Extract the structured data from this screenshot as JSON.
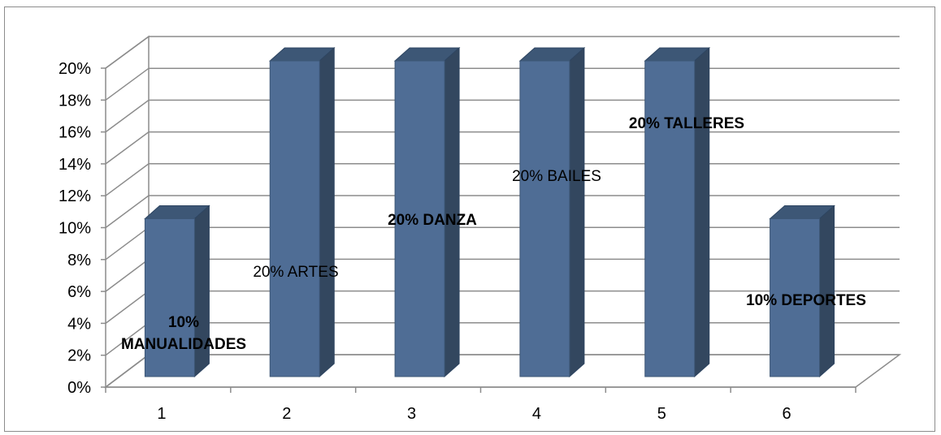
{
  "chart_data": {
    "type": "bar",
    "style": "3d-column",
    "categories": [
      "1",
      "2",
      "3",
      "4",
      "5",
      "6"
    ],
    "values": [
      0.1,
      0.2,
      0.2,
      0.2,
      0.2,
      0.1
    ],
    "y_ticks": [
      "0%",
      "2%",
      "4%",
      "6%",
      "8%",
      "10%",
      "12%",
      "14%",
      "16%",
      "18%",
      "20%"
    ],
    "ylim": [
      0,
      0.2
    ],
    "grid": true,
    "legend": "none",
    "bar_color": "#4f6d95",
    "data_labels": [
      {
        "lines": [
          "10%",
          "MANUALIDADES"
        ],
        "bold": true
      },
      {
        "lines": [
          "20% ARTES"
        ],
        "bold": false
      },
      {
        "lines": [
          "20% DANZA"
        ],
        "bold": true
      },
      {
        "lines": [
          "20% BAILES"
        ],
        "bold": false
      },
      {
        "lines": [
          "20%  TALLERES"
        ],
        "bold": true
      },
      {
        "lines": [
          "10% DEPORTES"
        ],
        "bold": true
      }
    ]
  }
}
